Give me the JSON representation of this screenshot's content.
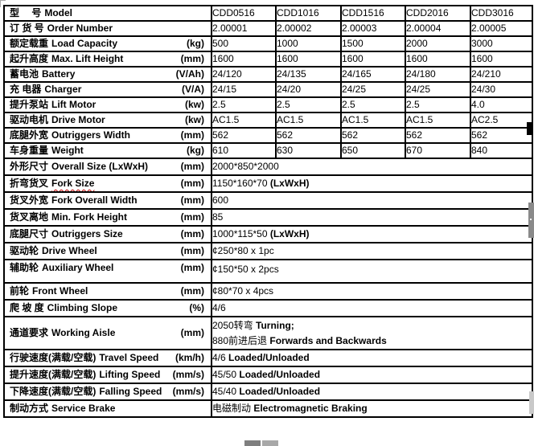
{
  "document_title": "Electric stacker specification table (CDD series)",
  "colors": {
    "table_border": "#000000",
    "text": "#000000",
    "spellcheck_underline": "#c00000",
    "scrollbar_gray": "#8a8a8a",
    "handle_black": "#000000"
  },
  "table": {
    "rows": [
      {
        "label_cn": "型　 号",
        "label_en": "Model",
        "unit": "",
        "values": [
          "CDD0516",
          "CDD1016",
          "CDD1516",
          "CDD2016",
          "CDD3016"
        ]
      },
      {
        "label_cn": "订 货 号",
        "label_en": "Order Number",
        "unit": "",
        "values": [
          "2.00001",
          "2.00002",
          "2.00003",
          "2.00004",
          "2.00005"
        ]
      },
      {
        "label_cn": "额定载重",
        "label_en": "Load Capacity",
        "unit": "(kg)",
        "values": [
          "500",
          "1000",
          "1500",
          "2000",
          "3000"
        ]
      },
      {
        "label_cn": "起升高度",
        "label_en": "Max. Lift Height",
        "unit": "(mm)",
        "values": [
          "1600",
          "1600",
          "1600",
          "1600",
          "1600"
        ]
      },
      {
        "label_cn": "蓄电池",
        "label_en": "Battery",
        "unit": "(V/Ah)",
        "values": [
          "24/120",
          "24/135",
          "24/165",
          "24/180",
          "24/210"
        ]
      },
      {
        "label_cn": "充 电器",
        "label_en": "Charger",
        "unit": "(V/A)",
        "values": [
          "24/15",
          "24/20",
          "24/25",
          "24/25",
          "24/30"
        ]
      },
      {
        "label_cn": "提升泵站",
        "label_en": "Lift Motor",
        "unit": "(kw)",
        "values": [
          "2.5",
          "2.5",
          "2.5",
          "2.5",
          "4.0"
        ]
      },
      {
        "label_cn": "驱动电机",
        "label_en": "Drive Motor",
        "unit": "(kw)",
        "values": [
          "AC1.5",
          "AC1.5",
          "AC1.5",
          "AC1.5",
          "AC2.5"
        ]
      },
      {
        "label_cn": "底腿外宽",
        "label_en": "Outriggers Width",
        "unit": "(mm)",
        "values": [
          "562",
          "562",
          "562",
          "562",
          "562"
        ]
      },
      {
        "label_cn": "车身重量",
        "label_en": "Weight",
        "unit": "(kg)",
        "values": [
          "610",
          "630",
          "650",
          "670",
          "840"
        ]
      },
      {
        "label_cn": "外形尺寸",
        "label_en": "Overall Size (LxWxH)",
        "unit": "(mm)",
        "lines": [
          {
            "plain": "2000*850*2000",
            "bold": ""
          }
        ]
      },
      {
        "label_cn": "折弯货叉",
        "label_en": "Fork Size",
        "unit": "(mm)",
        "spellcheck": true,
        "lines": [
          {
            "plain": "1150*160*70 ",
            "bold": "(LxWxH)"
          }
        ]
      },
      {
        "label_cn": "货叉外宽",
        "label_en": "Fork Overall Width",
        "unit": "(mm)",
        "lines": [
          {
            "plain": "600",
            "bold": ""
          }
        ]
      },
      {
        "label_cn": "货叉离地",
        "label_en": "Min. Fork Height",
        "unit": "(mm)",
        "lines": [
          {
            "plain": "85",
            "bold": ""
          }
        ]
      },
      {
        "label_cn": "底腿尺寸",
        "label_en": "Outriggers Size",
        "unit": "(mm)",
        "lines": [
          {
            "plain": "1000*115*50 ",
            "bold": "(LxWxH)"
          }
        ]
      },
      {
        "label_cn": "驱动轮",
        "label_en": "Drive Wheel",
        "unit": "(mm)",
        "lines": [
          {
            "plain": "¢250*80 x 1pc",
            "bold": ""
          }
        ]
      },
      {
        "label_cn": "辅助轮",
        "label_en": "Auxiliary Wheel",
        "unit": "(mm)",
        "lines": [
          {
            "plain": "¢150*50 x 2pcs",
            "bold": ""
          }
        ]
      },
      {
        "label_cn": "前轮",
        "label_en": "Front Wheel",
        "unit": "(mm)",
        "lines": [
          {
            "plain": "¢80*70 x 4pcs",
            "bold": ""
          }
        ]
      },
      {
        "label_cn": "爬 坡 度",
        "label_en": "Climbing Slope",
        "unit": "(%)",
        "lines": [
          {
            "plain": "4/6",
            "bold": ""
          }
        ]
      },
      {
        "label_cn": "通道要求",
        "label_en": "Working Aisle",
        "unit": "(mm)",
        "lines": [
          {
            "plain": "2050转弯 ",
            "bold": "Turning;"
          },
          {
            "plain": "880前进后退 ",
            "bold": "Forwards and Backwards"
          }
        ]
      },
      {
        "label_cn": "行驶速度(满载/空载)",
        "label_en": "Travel Speed",
        "unit": "(km/h)",
        "lines": [
          {
            "plain": "4/6 ",
            "bold": "Loaded/Unloaded"
          }
        ]
      },
      {
        "label_cn": "提升速度(满载/空载)",
        "label_en": "Lifting Speed",
        "unit": "(mm/s)",
        "lines": [
          {
            "plain": "45/50 ",
            "bold": "Loaded/Unloaded"
          }
        ]
      },
      {
        "label_cn": "下降速度(满载/空载)",
        "label_en": "Falling Speed",
        "unit": "(mm/s)",
        "lines": [
          {
            "plain": "45/40 ",
            "bold": "Loaded/Unloaded"
          }
        ]
      },
      {
        "label_cn": "制动方式",
        "label_en": "Service Brake",
        "unit": "",
        "lines": [
          {
            "plain": "电磁制动 ",
            "bold": "Electromagnetic Braking"
          }
        ]
      }
    ]
  }
}
